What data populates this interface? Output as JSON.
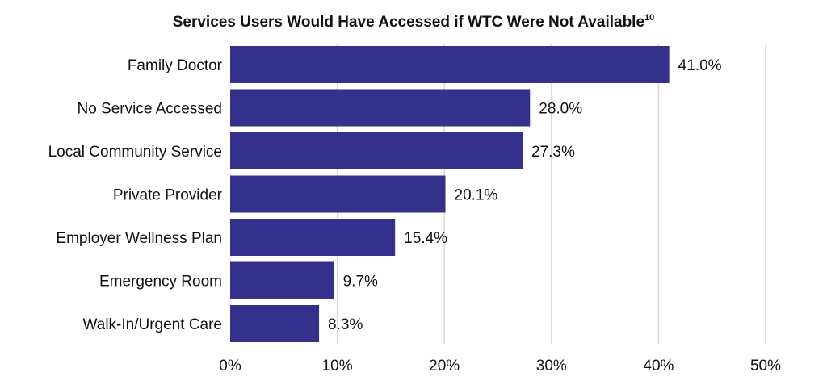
{
  "chart_data": {
    "type": "bar",
    "orientation": "horizontal",
    "title": "Services Users Would Have Accessed if WTC Were Not Available",
    "title_superscript": "10",
    "categories": [
      "Family Doctor",
      "No Service Accessed",
      "Local Community Service",
      "Private Provider",
      "Employer Wellness Plan",
      "Emergency Room",
      "Walk-In/Urgent Care"
    ],
    "values": [
      41.0,
      28.0,
      27.3,
      20.1,
      15.4,
      9.7,
      8.3
    ],
    "value_labels": [
      "41.0%",
      "28.0%",
      "27.3%",
      "20.1%",
      "15.4%",
      "9.7%",
      "8.3%"
    ],
    "xlim": [
      0,
      50
    ],
    "x_ticks": [
      0,
      10,
      20,
      30,
      40,
      50
    ],
    "x_tick_labels": [
      "0%",
      "10%",
      "20%",
      "30%",
      "40%",
      "50%"
    ],
    "xlabel": "",
    "ylabel": "",
    "grid": "vertical",
    "legend": "none",
    "colors": {
      "bar": "#33318c",
      "grid": "#d9d9d9",
      "text": "#111111"
    }
  }
}
